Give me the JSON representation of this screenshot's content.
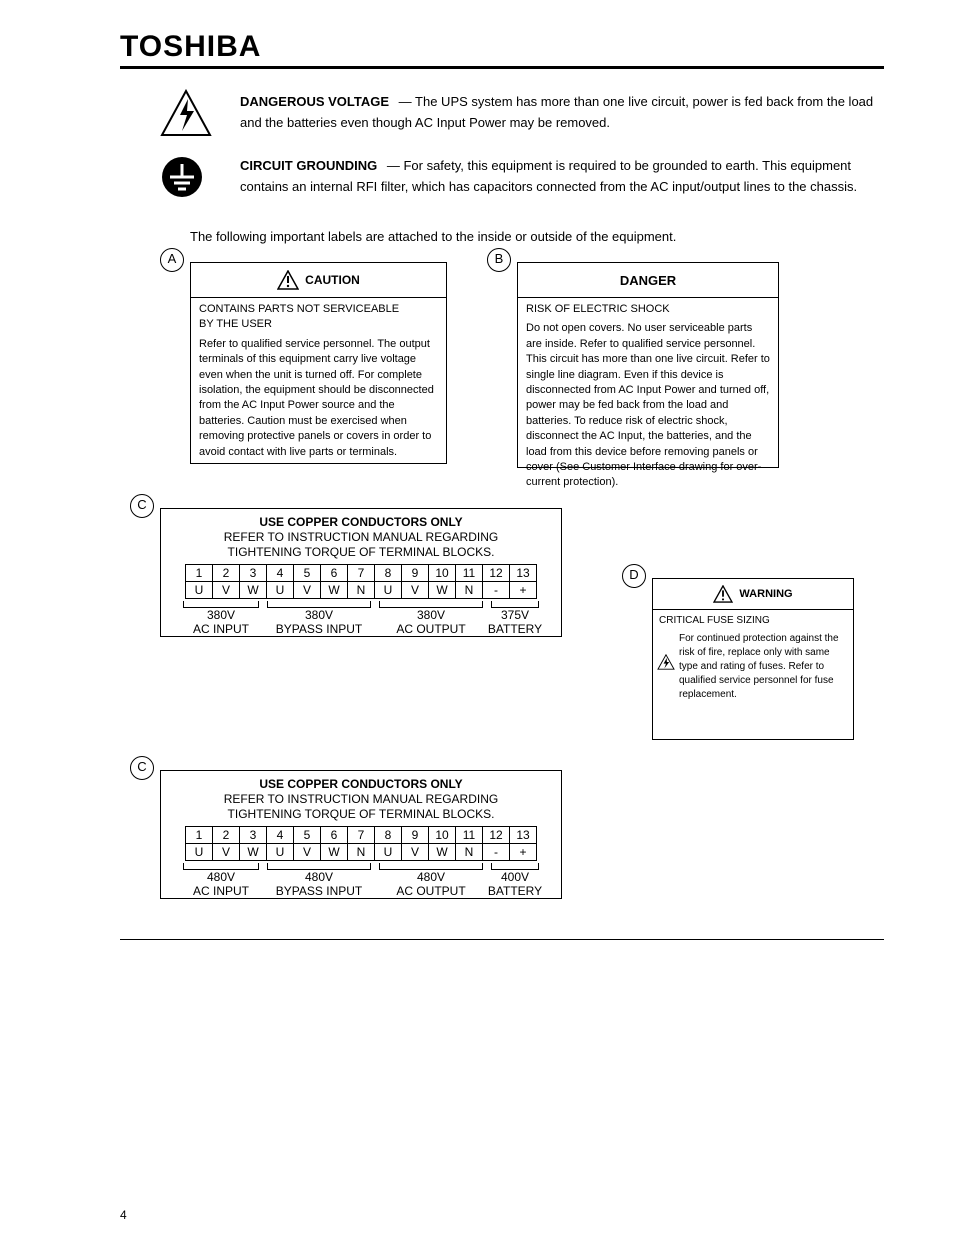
{
  "brand": "TOSHIBA",
  "safety": [
    {
      "title": "DANGEROUS VOLTAGE",
      "body": "The UPS system has more than one live circuit, power is fed back from the load and the batteries even though AC Input Power may be removed."
    },
    {
      "title": "CIRCUIT GROUNDING",
      "body": "For safety, this equipment is required to be grounded to earth. This equipment contains an internal RFI filter, which has capacitors connected from the AC input/output lines to the chassis."
    }
  ],
  "labels_intro": "The following important labels are attached to the inside or outside of the equipment.",
  "labelA": {
    "letter": "A",
    "header_title": "CAUTION",
    "line1": "CONTAINS PARTS NOT SERVICEABLE",
    "line2": "BY THE USER",
    "body": "Refer to qualified service personnel. The output terminals of this equipment carry live voltage even when the unit is turned off. For complete isolation, the equipment should be disconnected from the AC Input Power source and the batteries. Caution must be exercised when removing protective panels or covers in order to avoid contact with live parts or terminals."
  },
  "labelB": {
    "letter": "B",
    "header_title": "DANGER",
    "line1": "RISK OF ELECTRIC SHOCK",
    "body": "Do not open covers. No user serviceable parts are inside. Refer to qualified service personnel. This circuit has more than one live circuit. Refer to single line diagram. Even if this device is disconnected from AC Input Power and turned off, power may be fed back from the load and batteries. To reduce risk of electric shock, disconnect the AC Input, the batteries, and the load from this device before removing panels or cover (See Customer Interface drawing for over-current protection)."
  },
  "terminal": {
    "title": "USE COPPER CONDUCTORS ONLY",
    "text1": "REFER TO INSTRUCTION MANUAL REGARDING",
    "text2": "TIGHTENING TORQUE OF TERMINAL BLOCKS.",
    "cols": [
      "1",
      "2",
      "3",
      "4",
      "5",
      "6",
      "7",
      "8",
      "9",
      "10",
      "11",
      "12",
      "13"
    ],
    "row": [
      "U",
      "V",
      "W",
      "U",
      "V",
      "W",
      "N",
      "U",
      "V",
      "W",
      "N",
      "-",
      "+"
    ],
    "groups": [
      {
        "span": 3,
        "label": "AC INPUT"
      },
      {
        "span": 4,
        "label": "BYPASS INPUT"
      },
      {
        "span": 4,
        "label": "AC OUTPUT"
      },
      {
        "span": 2,
        "label": "BATTERY"
      }
    ]
  },
  "labelC1": {
    "letter": "C",
    "volts": [
      "380V",
      "380V",
      "380V",
      "375V"
    ]
  },
  "labelC2": {
    "letter": "C",
    "volts": [
      "480V",
      "480V",
      "480V",
      "400V"
    ]
  },
  "labelD": {
    "letter": "D",
    "header_title": "WARNING",
    "line1": "CRITICAL FUSE SIZING",
    "body": "For continued protection against the risk of fire, replace only with same type and rating of fuses. Refer to qualified service personnel for fuse replacement."
  },
  "page_number": "4"
}
